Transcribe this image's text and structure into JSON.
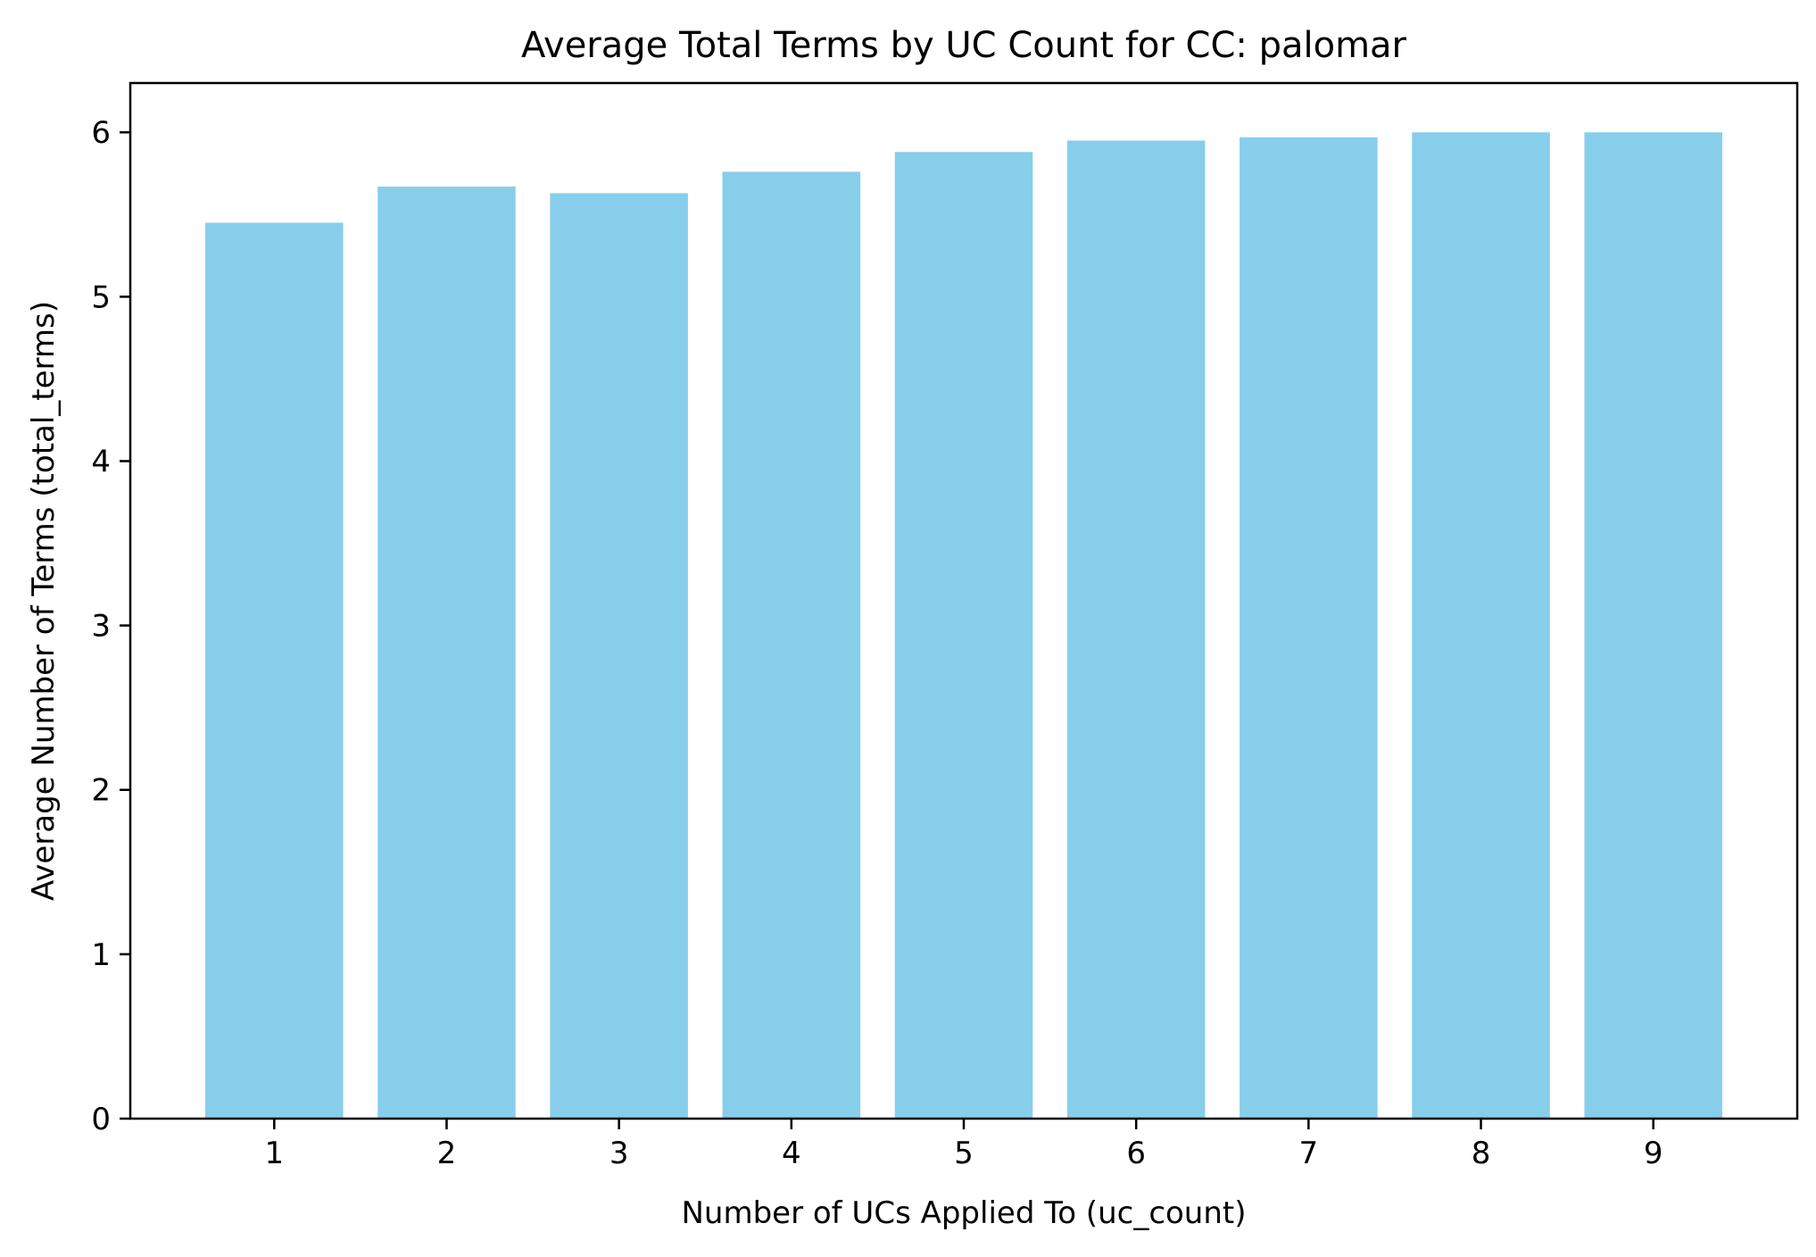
{
  "chart_data": {
    "type": "bar",
    "title": "Average Total Terms by UC Count for CC: palomar",
    "xlabel": "Number of UCs Applied To (uc_count)",
    "ylabel": "Average Number of Terms (total_terms)",
    "categories": [
      "1",
      "2",
      "3",
      "4",
      "5",
      "6",
      "7",
      "8",
      "9"
    ],
    "values": [
      5.45,
      5.67,
      5.63,
      5.76,
      5.88,
      5.95,
      5.97,
      6.0,
      6.0
    ],
    "ylim": [
      0,
      6.3
    ],
    "yticks": [
      0,
      1,
      2,
      3,
      4,
      5,
      6
    ],
    "bar_color": "#87CEEB",
    "grid": false,
    "legend": "none"
  }
}
